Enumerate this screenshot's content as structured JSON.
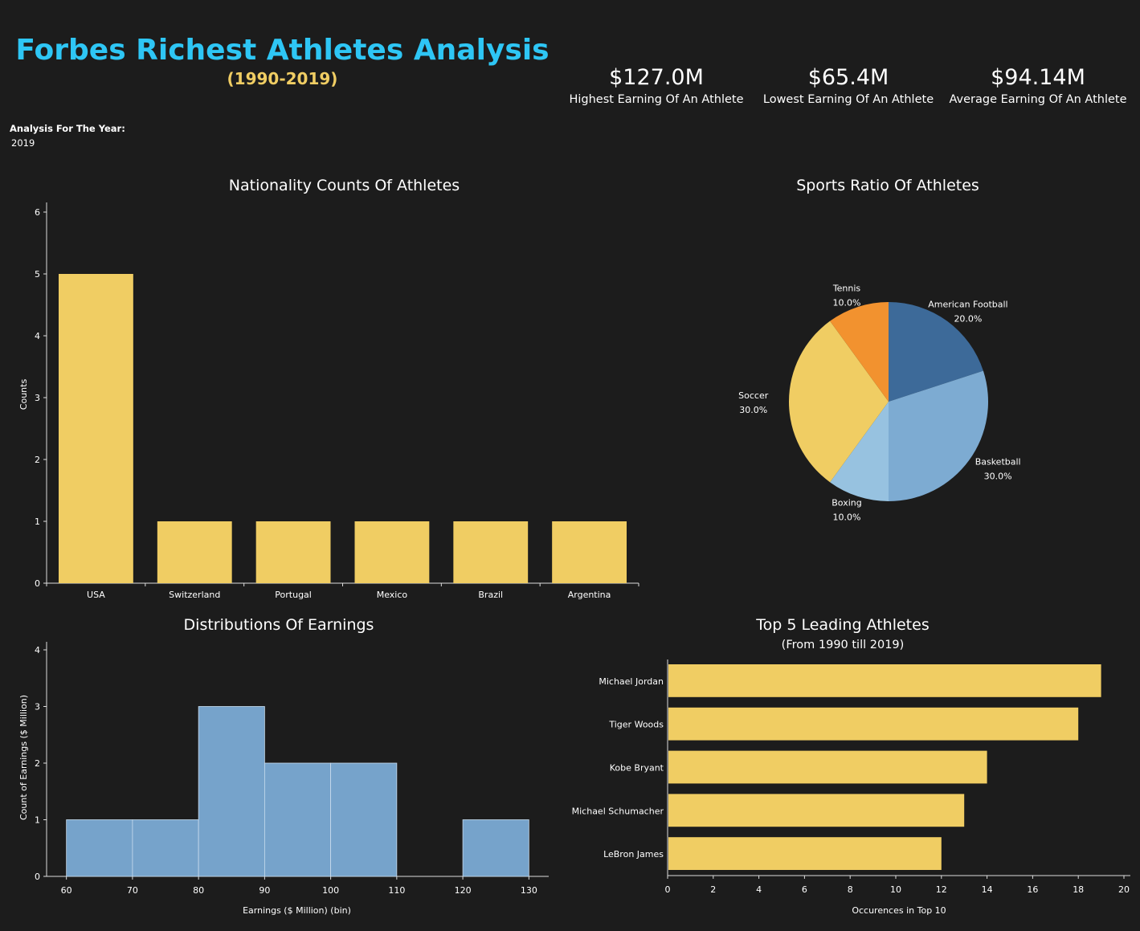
{
  "header": {
    "title": "Forbes Richest Athletes Analysis",
    "subtitle": "(1990-2019)"
  },
  "kpis": [
    {
      "value": "$127.0M",
      "label": "Highest Earning Of An Athlete"
    },
    {
      "value": "$65.4M",
      "label": "Lowest Earning Of An Athlete"
    },
    {
      "value": "$94.14M",
      "label": "Average Earning Of An Athlete"
    }
  ],
  "filter": {
    "label": "Analysis For The Year:",
    "value": "2019"
  },
  "colors": {
    "accent_blue": "#2ec6f5",
    "accent_yellow": "#f0cd63",
    "bar": "#f0cd63",
    "hist": "#76a3cb"
  },
  "chart_data": [
    {
      "type": "bar",
      "title": "Nationality Counts Of Athletes",
      "ylabel": "Counts",
      "xlabel": "",
      "categories": [
        "USA",
        "Switzerland",
        "Portugal",
        "Mexico",
        "Brazil",
        "Argentina"
      ],
      "values": [
        5,
        1,
        1,
        1,
        1,
        1
      ],
      "ylim": [
        0,
        6
      ],
      "yticks": [
        0,
        1,
        2,
        3,
        4,
        5,
        6
      ],
      "grid": false
    },
    {
      "type": "pie",
      "title": "Sports Ratio Of Athletes",
      "slices": [
        {
          "label": "American Football",
          "pct": "20.0%",
          "value": 20.0,
          "color": "#3d6a99"
        },
        {
          "label": "Basketball",
          "pct": "30.0%",
          "value": 30.0,
          "color": "#7dabd2"
        },
        {
          "label": "Boxing",
          "pct": "10.0%",
          "value": 10.0,
          "color": "#97c2e0"
        },
        {
          "label": "Soccer",
          "pct": "30.0%",
          "value": 30.0,
          "color": "#f0cd63"
        },
        {
          "label": "Tennis",
          "pct": "10.0%",
          "value": 10.0,
          "color": "#f2922f"
        }
      ]
    },
    {
      "type": "bar",
      "title": "Distributions Of Earnings",
      "xlabel": "Earnings ($ Million) (bin)",
      "ylabel": "Count of Earnings ($ Million)",
      "bins": [
        [
          60,
          70
        ],
        [
          70,
          80
        ],
        [
          80,
          90
        ],
        [
          90,
          100
        ],
        [
          100,
          110
        ],
        [
          110,
          120
        ],
        [
          120,
          130
        ]
      ],
      "values": [
        1,
        1,
        3,
        2,
        2,
        0,
        1
      ],
      "xlim": [
        57,
        133
      ],
      "xticks": [
        60,
        70,
        80,
        90,
        100,
        110,
        120,
        130
      ],
      "ylim": [
        0,
        4
      ],
      "yticks": [
        0,
        1,
        2,
        3,
        4
      ]
    },
    {
      "type": "bar",
      "orientation": "horizontal",
      "title": "Top 5 Leading Athletes",
      "subtitle": "(From 1990 till 2019)",
      "xlabel": "Occurences in Top 10",
      "categories": [
        "Michael Jordan",
        "Tiger Woods",
        "Kobe Bryant",
        "Michael Schumacher",
        "LeBron James"
      ],
      "values": [
        19,
        18,
        14,
        13,
        12
      ],
      "xlim": [
        0,
        20
      ],
      "xticks": [
        0,
        2,
        4,
        6,
        8,
        10,
        12,
        14,
        16,
        18,
        20
      ]
    }
  ]
}
